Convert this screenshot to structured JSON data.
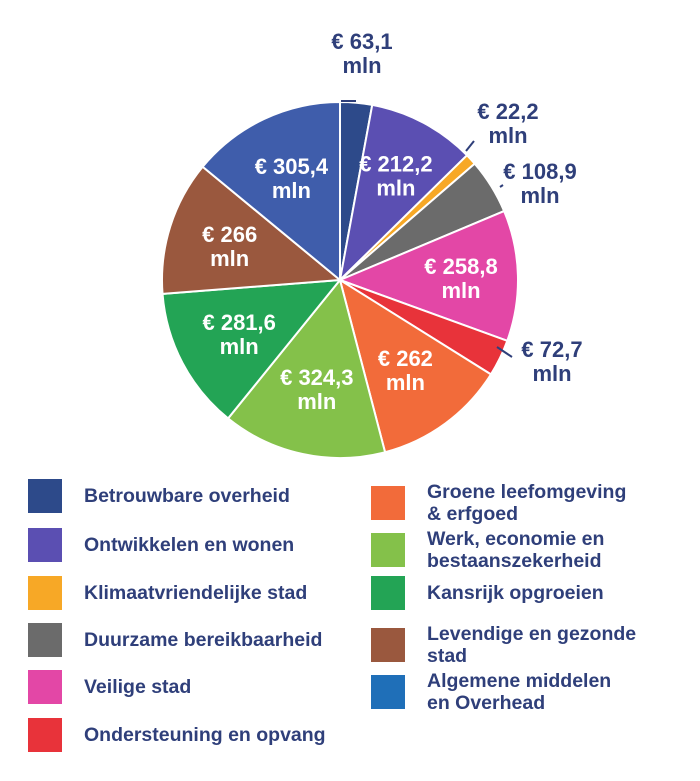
{
  "chart_data": {
    "type": "pie",
    "start_angle_deg": 0,
    "direction": "clockwise",
    "slices": [
      {
        "label": "Betrouwbare overheid",
        "value": 63.1,
        "value_label": [
          "€ 63,1",
          "mln"
        ],
        "color": "#2d4a8a",
        "label_position": "outside"
      },
      {
        "label": "Ontwikkelen en wonen",
        "value": 212.2,
        "value_label": [
          "€ 212,2",
          "mln"
        ],
        "color": "#5b4fb2",
        "label_position": "inside"
      },
      {
        "label": "Klimaatvriendelijke stad",
        "value": 22.2,
        "value_label": [
          "€ 22,2",
          "mln"
        ],
        "color": "#f7a826",
        "label_position": "outside"
      },
      {
        "label": "Duurzame bereikbaarheid",
        "value": 108.9,
        "value_label": [
          "€ 108,9",
          "mln"
        ],
        "color": "#6b6b6b",
        "label_position": "outside"
      },
      {
        "label": "Veilige stad",
        "value": 258.8,
        "value_label": [
          "€ 258,8",
          "mln"
        ],
        "color": "#e347a6",
        "label_position": "inside"
      },
      {
        "label": "Ondersteuning en opvang",
        "value": 72.7,
        "value_label": [
          "€ 72,7",
          "mln"
        ],
        "color": "#e8333a",
        "label_position": "outside"
      },
      {
        "label": "Groene leefomgeving & erfgoed",
        "value": 262,
        "value_label": [
          "€ 262",
          "mln"
        ],
        "color": "#f26b3a",
        "label_position": "inside"
      },
      {
        "label": "Werk, economie en bestaanszekerheid",
        "value": 324.3,
        "value_label": [
          "€ 324,3",
          "mln"
        ],
        "color": "#84c14a",
        "label_position": "inside"
      },
      {
        "label": "Kansrijk opgroeien",
        "value": 281.6,
        "value_label": [
          "€ 281,6",
          "mln"
        ],
        "color": "#23a455",
        "label_position": "inside"
      },
      {
        "label": "Levendige en gezonde stad",
        "value": 266,
        "value_label": [
          "€ 266",
          "mln"
        ],
        "color": "#9a583e",
        "label_position": "inside"
      },
      {
        "label": "Algemene middelen en Overhead",
        "value": 305.4,
        "value_label": [
          "€ 305,4",
          "mln"
        ],
        "color": "#3f5dab",
        "label_position": "inside"
      }
    ],
    "legend": {
      "placement": "bottom",
      "columns": [
        [
          {
            "text": "Betrouwbare overheid",
            "color": "#2d4a8a"
          },
          {
            "text": "Ontwikkelen en wonen",
            "color": "#5b4fb2"
          },
          {
            "text": "Klimaatvriendelijke stad",
            "color": "#f7a826"
          },
          {
            "text": "Duurzame bereikbaarheid",
            "color": "#6b6b6b"
          },
          {
            "text": "Veilige stad",
            "color": "#e347a6"
          },
          {
            "text": "Ondersteuning en opvang",
            "color": "#e8333a"
          }
        ],
        [
          {
            "text": "Groene leefomgeving\n& erfgoed",
            "color": "#f26b3a"
          },
          {
            "text": "Werk, economie en\nbestaanszekerheid",
            "color": "#84c14a"
          },
          {
            "text": "Kansrijk opgroeien",
            "color": "#23a455"
          },
          {
            "text": "Levendige en gezonde\nstad",
            "color": "#9a583e"
          },
          {
            "text": "Algemene middelen\nen Overhead",
            "color": "#1f6fb8"
          }
        ]
      ]
    },
    "inside_label_color": "#ffffff",
    "outside_label_color": "#2f3f7a"
  }
}
